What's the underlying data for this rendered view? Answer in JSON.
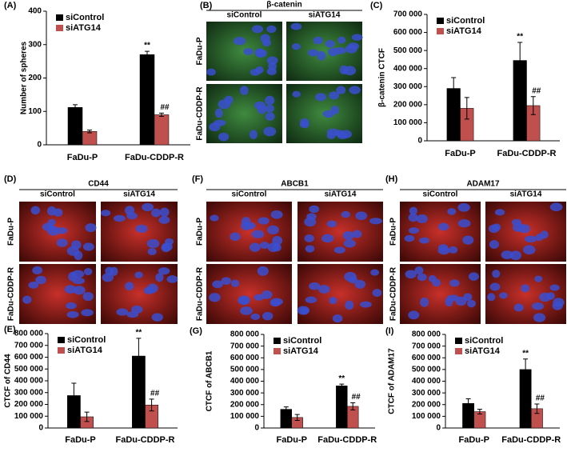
{
  "chart_data": [
    {
      "type": "bar",
      "panel_label": "(A)",
      "ylabel": "Number of spheres",
      "categories": [
        "FaDu-P",
        "FaDu-CDDP-R"
      ],
      "series": [
        {
          "name": "siControl",
          "color": "#000000",
          "values": [
            112,
            270
          ],
          "errors": [
            8,
            10
          ],
          "annotations": [
            null,
            "**"
          ]
        },
        {
          "name": "siATG14",
          "color": "#c0504d",
          "values": [
            40,
            90
          ],
          "errors": [
            4,
            5
          ],
          "annotations": [
            null,
            "##"
          ]
        }
      ],
      "ylim": [
        0,
        400
      ],
      "yticks": [
        0,
        100,
        200,
        300,
        400
      ],
      "legend": "upper left"
    },
    {
      "type": "bar",
      "panel_label": "(C)",
      "ylabel": "β-catenin CTCF",
      "categories": [
        "FaDu-P",
        "FaDu-CDDP-R"
      ],
      "series": [
        {
          "name": "siControl",
          "color": "#000000",
          "values": [
            290000,
            445000
          ],
          "errors": [
            60000,
            100000
          ],
          "annotations": [
            null,
            "**"
          ]
        },
        {
          "name": "siATG14",
          "color": "#c0504d",
          "values": [
            180000,
            195000
          ],
          "errors": [
            60000,
            50000
          ],
          "annotations": [
            null,
            "##"
          ]
        }
      ],
      "ylim": [
        0,
        700000
      ],
      "yticks": [
        0,
        {
          "value": 100000,
          "label": "100 000"
        },
        {
          "value": 200000,
          "label": "200 000"
        },
        {
          "value": 300000,
          "label": "300 000"
        },
        {
          "value": 400000,
          "label": "400 000"
        },
        {
          "value": 500000,
          "label": "500 000"
        },
        {
          "value": 600000,
          "label": "600 000"
        },
        {
          "value": 700000,
          "label": "700 000"
        }
      ],
      "legend": "upper left"
    },
    {
      "type": "bar",
      "panel_label": "(E)",
      "ylabel": "CTCF of CD44",
      "categories": [
        "FaDu-P",
        "FaDu-CDDP-R"
      ],
      "series": [
        {
          "name": "siControl",
          "color": "#000000",
          "values": [
            275000,
            610000
          ],
          "errors": [
            105000,
            150000
          ],
          "annotations": [
            null,
            "**"
          ]
        },
        {
          "name": "siATG14",
          "color": "#c0504d",
          "values": [
            95000,
            195000
          ],
          "errors": [
            40000,
            50000
          ],
          "annotations": [
            null,
            "##"
          ]
        }
      ],
      "ylim": [
        0,
        800000
      ],
      "yticks": [
        0,
        {
          "value": 100000,
          "label": "100 000"
        },
        {
          "value": 200000,
          "label": "200 000"
        },
        {
          "value": 300000,
          "label": "300 000"
        },
        {
          "value": 400000,
          "label": "400 000"
        },
        {
          "value": 500000,
          "label": "500 000"
        },
        {
          "value": 600000,
          "label": "600 000"
        },
        {
          "value": 700000,
          "label": "700 000"
        },
        {
          "value": 800000,
          "label": "800 000"
        }
      ],
      "legend": "upper left"
    },
    {
      "type": "bar",
      "panel_label": "(G)",
      "ylabel": "CTCF of ABCB1",
      "categories": [
        "FaDu-P",
        "FaDu-CDDP-R"
      ],
      "series": [
        {
          "name": "siControl",
          "color": "#000000",
          "values": [
            160000,
            360000
          ],
          "errors": [
            20000,
            15000
          ],
          "annotations": [
            null,
            "**"
          ]
        },
        {
          "name": "siATG14",
          "color": "#c0504d",
          "values": [
            90000,
            185000
          ],
          "errors": [
            25000,
            30000
          ],
          "annotations": [
            null,
            "##"
          ]
        }
      ],
      "ylim": [
        0,
        800000
      ],
      "yticks": [
        0,
        {
          "value": 100000,
          "label": "100 000"
        },
        {
          "value": 200000,
          "label": "200 000"
        },
        {
          "value": 300000,
          "label": "300 000"
        },
        {
          "value": 400000,
          "label": "400 000"
        },
        {
          "value": 500000,
          "label": "500 000"
        },
        {
          "value": 600000,
          "label": "600 000"
        },
        {
          "value": 700000,
          "label": "700 000"
        },
        {
          "value": 800000,
          "label": "800 000"
        }
      ],
      "legend": "upper left"
    },
    {
      "type": "bar",
      "panel_label": "(I)",
      "ylabel": "CTCF of ADAM17",
      "categories": [
        "FaDu-P",
        "FaDu-CDDP-R"
      ],
      "series": [
        {
          "name": "siControl",
          "color": "#000000",
          "values": [
            210000,
            500000
          ],
          "errors": [
            40000,
            90000
          ],
          "annotations": [
            null,
            "**"
          ]
        },
        {
          "name": "siATG14",
          "color": "#c0504d",
          "values": [
            140000,
            165000
          ],
          "errors": [
            20000,
            40000
          ],
          "annotations": [
            null,
            "##"
          ]
        }
      ],
      "ylim": [
        0,
        800000
      ],
      "yticks": [
        0,
        {
          "value": 100000,
          "label": "100 000"
        },
        {
          "value": 200000,
          "label": "200 000"
        },
        {
          "value": 300000,
          "label": "300 000"
        },
        {
          "value": 400000,
          "label": "400 000"
        },
        {
          "value": 500000,
          "label": "500 000"
        },
        {
          "value": 600000,
          "label": "600 000"
        },
        {
          "value": 700000,
          "label": "700 000"
        },
        {
          "value": 800000,
          "label": "800 000"
        }
      ],
      "legend": "upper left"
    }
  ],
  "image_panels": [
    {
      "panel_label": "(B)",
      "title": "β-catenin",
      "columns": [
        "siControl",
        "siATG14"
      ],
      "rows": [
        "FaDu-P",
        "FaDu-CDDP-R"
      ]
    },
    {
      "panel_label": "(D)",
      "title": "CD44",
      "columns": [
        "siControl",
        "siATG14"
      ],
      "rows": [
        "FaDu-P",
        "FaDu-CDDP-R"
      ]
    },
    {
      "panel_label": "(F)",
      "title": "ABCB1",
      "columns": [
        "siControl",
        "siATG14"
      ],
      "rows": [
        "FaDu-P",
        "FaDu-CDDP-R"
      ]
    },
    {
      "panel_label": "(H)",
      "title": "ADAM17",
      "columns": [
        "siControl",
        "siATG14"
      ],
      "rows": [
        "FaDu-P",
        "FaDu-CDDP-R"
      ]
    }
  ]
}
